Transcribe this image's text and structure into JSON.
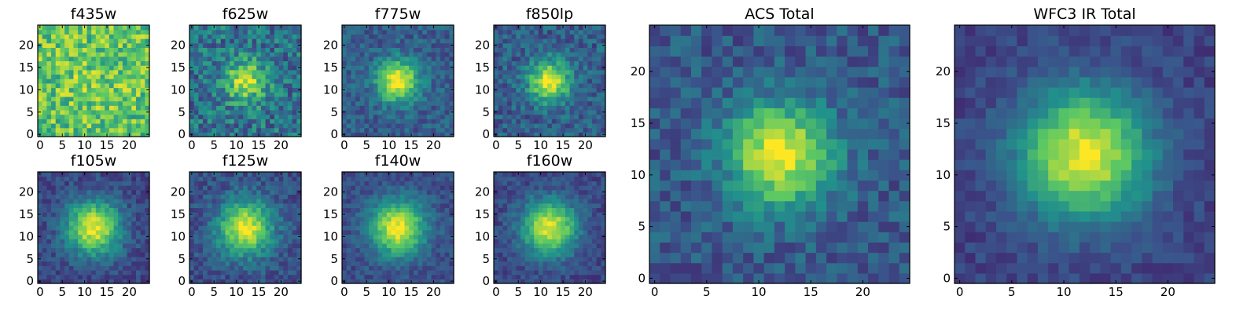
{
  "chart_data": {
    "type": "heatmap",
    "colormap": "viridis",
    "colormap_stops": [
      "#440154",
      "#3b528b",
      "#21918c",
      "#5ec962",
      "#fde725"
    ],
    "grid_size": 25,
    "xlim": [
      0,
      25
    ],
    "ylim": [
      0,
      25
    ],
    "panels": [
      {
        "id": "f435w",
        "title": "f435w",
        "peak": [
          12,
          12
        ],
        "sigma": 6,
        "amplitude": 0.05,
        "base": 0.72,
        "noise": 0.22,
        "seed": 11,
        "xticks": [
          "0",
          "5",
          "10",
          "15",
          "20"
        ],
        "yticks": [
          "0",
          "5",
          "10",
          "15",
          "20"
        ]
      },
      {
        "id": "f625w",
        "title": "f625w",
        "peak": [
          12,
          12
        ],
        "sigma": 3.2,
        "amplitude": 0.55,
        "base": 0.38,
        "noise": 0.2,
        "seed": 23,
        "xticks": [
          "0",
          "5",
          "10",
          "15",
          "20"
        ],
        "yticks": [
          "0",
          "5",
          "10",
          "15",
          "20"
        ]
      },
      {
        "id": "f775w",
        "title": "f775w",
        "peak": [
          12,
          12
        ],
        "sigma": 3.2,
        "amplitude": 0.72,
        "base": 0.3,
        "noise": 0.12,
        "seed": 37,
        "xticks": [
          "0",
          "5",
          "10",
          "15",
          "20"
        ],
        "yticks": [
          "0",
          "5",
          "10",
          "15",
          "20"
        ]
      },
      {
        "id": "f850lp",
        "title": "f850lp",
        "peak": [
          12,
          12
        ],
        "sigma": 3.2,
        "amplitude": 0.68,
        "base": 0.3,
        "noise": 0.14,
        "seed": 41,
        "xticks": [
          "0",
          "5",
          "10",
          "15",
          "20"
        ],
        "yticks": [
          "0",
          "5",
          "10",
          "15",
          "20"
        ]
      },
      {
        "id": "f105w",
        "title": "f105w",
        "peak": [
          12,
          12
        ],
        "sigma": 4.2,
        "amplitude": 0.75,
        "base": 0.22,
        "noise": 0.1,
        "seed": 53,
        "xticks": [
          "0",
          "5",
          "10",
          "15",
          "20"
        ],
        "yticks": [
          "0",
          "5",
          "10",
          "15",
          "20"
        ]
      },
      {
        "id": "f125w",
        "title": "f125w",
        "peak": [
          12,
          12
        ],
        "sigma": 4.2,
        "amplitude": 0.72,
        "base": 0.25,
        "noise": 0.11,
        "seed": 67,
        "xticks": [
          "0",
          "5",
          "10",
          "15",
          "20"
        ],
        "yticks": [
          "0",
          "5",
          "10",
          "15",
          "20"
        ]
      },
      {
        "id": "f140w",
        "title": "f140w",
        "peak": [
          12,
          12
        ],
        "sigma": 4.2,
        "amplitude": 0.75,
        "base": 0.24,
        "noise": 0.09,
        "seed": 71,
        "xticks": [
          "0",
          "5",
          "10",
          "15",
          "20"
        ],
        "yticks": [
          "0",
          "5",
          "10",
          "15",
          "20"
        ]
      },
      {
        "id": "f160w",
        "title": "f160w",
        "peak": [
          12,
          12
        ],
        "sigma": 4.2,
        "amplitude": 0.75,
        "base": 0.22,
        "noise": 0.09,
        "seed": 83,
        "xticks": [
          "0",
          "5",
          "10",
          "15",
          "20"
        ],
        "yticks": [
          "0",
          "5",
          "10",
          "15",
          "20"
        ]
      },
      {
        "id": "acs_total",
        "title": "ACS Total",
        "peak": [
          12,
          12
        ],
        "sigma": 3.4,
        "amplitude": 0.72,
        "base": 0.28,
        "noise": 0.12,
        "seed": 97,
        "xticks": [
          "0",
          "5",
          "10",
          "15",
          "20"
        ],
        "yticks": [
          "0",
          "5",
          "10",
          "15",
          "20"
        ]
      },
      {
        "id": "wfc3_ir_total",
        "title": "WFC3 IR Total",
        "peak": [
          12,
          12
        ],
        "sigma": 4.3,
        "amplitude": 0.78,
        "base": 0.2,
        "noise": 0.07,
        "seed": 101,
        "xticks": [
          "0",
          "5",
          "10",
          "15",
          "20"
        ],
        "yticks": [
          "0",
          "5",
          "10",
          "15",
          "20"
        ]
      }
    ]
  }
}
